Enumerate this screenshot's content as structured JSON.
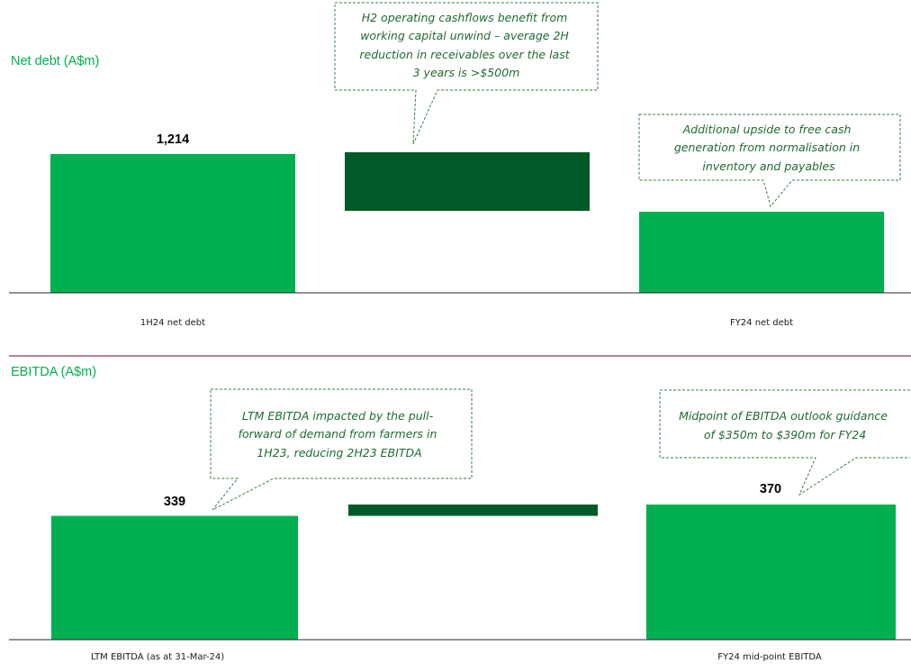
{
  "colors": {
    "accent": "#00b050",
    "dark": "#005a28",
    "note": "#1e6b2e"
  },
  "chart_data": [
    {
      "type": "bar",
      "title": "Net debt (A$m)",
      "categories": [
        "1H24 net debt",
        "",
        "FY24 net debt"
      ],
      "values": [
        1214,
        null,
        null
      ],
      "value_labels": [
        "1,214",
        "",
        ""
      ],
      "annotations": [
        "H2 operating cashflows benefit from working capital unwind – average 2H reduction in receivables over the last 3 years is >$500m",
        "Additional upside to free cash generation from normalisation in inventory and payables"
      ]
    },
    {
      "type": "bar",
      "title": "EBITDA (A$m)",
      "categories": [
        "LTM EBITDA (as at 31-Mar-24)",
        "",
        "FY24 mid-point EBITDA"
      ],
      "values": [
        339,
        null,
        370
      ],
      "value_labels": [
        "339",
        "",
        "370"
      ],
      "annotations": [
        "LTM EBITDA impacted by the pull-forward of demand from farmers in 1H23, reducing 2H23 EBITDA",
        "Midpoint of EBITDA outlook guidance of $350m to $390m for FY24"
      ]
    }
  ]
}
